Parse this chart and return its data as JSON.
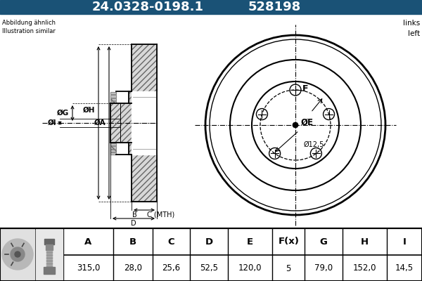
{
  "title_part": "24.0328-0198.1",
  "title_num": "528198",
  "header_bg": "#1a5276",
  "header_text_color": "#ffffff",
  "bg_color": "#ffffff",
  "note_left": "Abbildung ähnlich\nIllustration similar",
  "note_right": "links\nleft",
  "dim_label_12_5": "Ø12,5",
  "table_headers": [
    "A",
    "B",
    "C",
    "D",
    "E",
    "F(x)",
    "G",
    "H",
    "I"
  ],
  "table_values": [
    "315,0",
    "28,0",
    "25,6",
    "52,5",
    "120,0",
    "5",
    "79,0",
    "152,0",
    "14,5"
  ],
  "label_OI": "ØI",
  "label_OG": "ØG",
  "label_OH": "ØH",
  "label_OA": "ØA",
  "label_B": "B",
  "label_C": "C (MTH)",
  "label_D": "D",
  "label_F": "F",
  "label_OE": "ØE"
}
